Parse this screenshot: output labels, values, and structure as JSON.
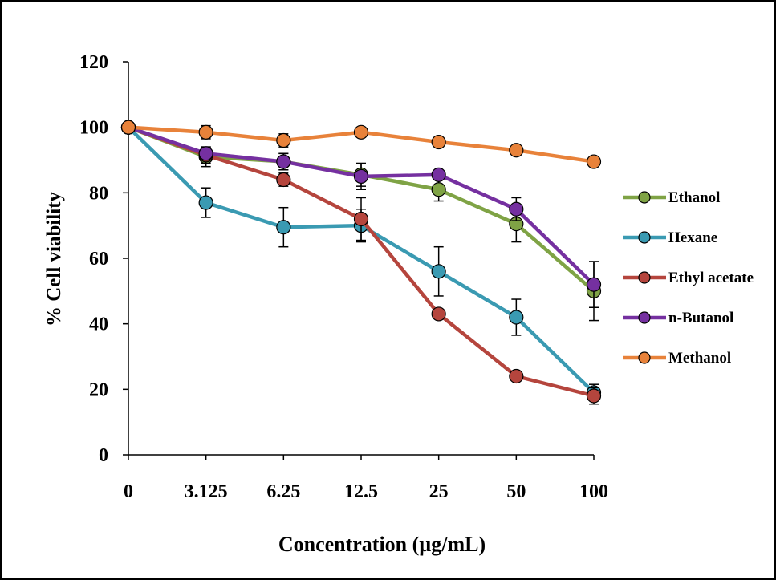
{
  "chart_data": {
    "type": "line",
    "title": "",
    "xlabel": "Concentration (µg/mL)",
    "ylabel": "% Cell viability",
    "categories": [
      "0",
      "3.125",
      "6.25",
      "12.5",
      "25",
      "50",
      "100"
    ],
    "ylim": [
      0,
      120
    ],
    "yticks": [
      0,
      20,
      40,
      60,
      80,
      100,
      120
    ],
    "grid": false,
    "legend_position": "right",
    "series": [
      {
        "name": "Ethanol",
        "color": "#7fa345",
        "values": [
          100,
          91,
          89.5,
          85.5,
          81,
          70.5,
          50
        ],
        "errors": [
          0,
          3,
          2.5,
          3.5,
          3.5,
          5.5,
          9
        ]
      },
      {
        "name": "Hexane",
        "color": "#3a9ab2",
        "values": [
          100,
          77,
          69.5,
          70,
          56,
          42,
          19
        ],
        "errors": [
          0,
          4.5,
          6,
          5,
          7.5,
          5.5,
          2.5
        ]
      },
      {
        "name": "Ethyl acetate",
        "color": "#b5453d",
        "values": [
          100,
          91.5,
          84,
          72,
          43,
          24,
          18
        ],
        "errors": [
          0,
          2.5,
          2,
          6.5,
          0,
          0,
          2.5
        ]
      },
      {
        "name": "n-Butanol",
        "color": "#7530a0",
        "values": [
          100,
          92,
          89.5,
          85,
          85.5,
          75,
          52
        ],
        "errors": [
          0,
          2,
          2.5,
          4,
          0,
          3.5,
          7
        ]
      },
      {
        "name": "Methanol",
        "color": "#e8823a",
        "values": [
          100,
          98.5,
          96,
          98.5,
          95.5,
          93,
          89.5
        ],
        "errors": [
          0,
          2,
          2,
          1.5,
          0,
          0,
          0
        ]
      }
    ]
  }
}
